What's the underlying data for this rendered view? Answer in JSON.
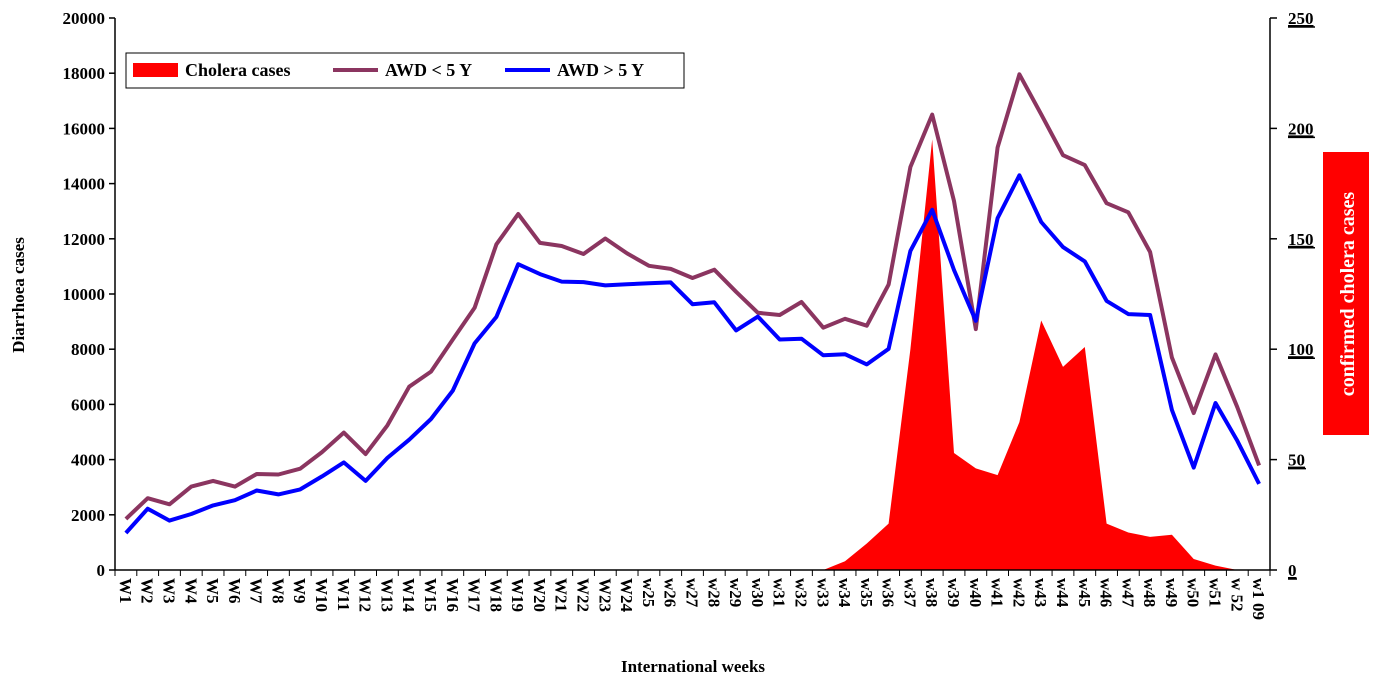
{
  "chart_data": {
    "type": "line",
    "xlabel": "International weeks",
    "ylabel": "Diarrhoea cases",
    "y2label": "confirmed cholera cases",
    "ylim": [
      0,
      20000
    ],
    "y_ticks": [
      "0",
      "2000",
      "4000",
      "6000",
      "8000",
      "10000",
      "12000",
      "14000",
      "16000",
      "18000",
      "20000"
    ],
    "y2lim": [
      0,
      250
    ],
    "y2_ticks": [
      "0",
      "50",
      "100",
      "150",
      "200",
      "250"
    ],
    "categories": [
      "W1",
      "W2",
      "W3",
      "W4",
      "W5",
      "W6",
      "W7",
      "W8",
      "W9",
      "W10",
      "W11",
      "W12",
      "W13",
      "W14",
      "W15",
      "W16",
      "W17",
      "W18",
      "W19",
      "W20",
      "W21",
      "W22",
      "W23",
      "W24",
      "w25",
      "w26",
      "w27",
      "w28",
      "w29",
      "w30",
      "w31",
      "w32",
      "w33",
      "w34",
      "w35",
      "w36",
      "w37",
      "w38",
      "w39",
      "w40",
      "w41",
      "w42",
      "w43",
      "w44",
      "w45",
      "w46",
      "w47",
      "w48",
      "w49",
      "w50",
      "w51",
      "w 52",
      "w1 09"
    ],
    "legend_position": "top-left",
    "grid": false,
    "series": [
      {
        "name": "Cholera cases",
        "type": "area",
        "axis": "right",
        "color": "#ff0000",
        "values": [
          0,
          0,
          0,
          0,
          0,
          0,
          0,
          0,
          0,
          0,
          0,
          0,
          0,
          0,
          0,
          0,
          0,
          0,
          0,
          0,
          0,
          0,
          0,
          0,
          0,
          0,
          0,
          0,
          0,
          0,
          0,
          0,
          0,
          4,
          12,
          21,
          100,
          195,
          53,
          46,
          43,
          67,
          113,
          92,
          101,
          21,
          17,
          15,
          16,
          5,
          2,
          0,
          0
        ]
      },
      {
        "name": "AWD < 5 Y",
        "type": "line",
        "axis": "left",
        "color": "#8b3560",
        "values": [
          1850,
          2600,
          2380,
          3020,
          3230,
          3020,
          3480,
          3460,
          3670,
          4270,
          4980,
          4200,
          5240,
          6640,
          7190,
          8350,
          9500,
          11800,
          12900,
          11850,
          11740,
          11450,
          12010,
          11470,
          11020,
          10910,
          10580,
          10880,
          10080,
          9320,
          9240,
          9710,
          8780,
          9100,
          8850,
          10340,
          14600,
          16500,
          13370,
          8730,
          15310,
          17960,
          16510,
          15030,
          14670,
          13290,
          12960,
          11520,
          7700,
          5690,
          7810,
          5900,
          3790
        ]
      },
      {
        "name": "AWD > 5 Y",
        "type": "line",
        "axis": "left",
        "color": "#0000ff",
        "values": [
          1340,
          2220,
          1790,
          2030,
          2340,
          2530,
          2880,
          2740,
          2920,
          3390,
          3900,
          3230,
          4060,
          4720,
          5470,
          6500,
          8210,
          9170,
          11080,
          10720,
          10450,
          10430,
          10310,
          10350,
          10390,
          10420,
          9630,
          9700,
          8680,
          9180,
          8350,
          8380,
          7780,
          7820,
          7450,
          8010,
          11560,
          13050,
          10870,
          9030,
          12750,
          14300,
          12610,
          11700,
          11180,
          9750,
          9270,
          9240,
          5800,
          3710,
          6050,
          4680,
          3120
        ]
      }
    ]
  }
}
